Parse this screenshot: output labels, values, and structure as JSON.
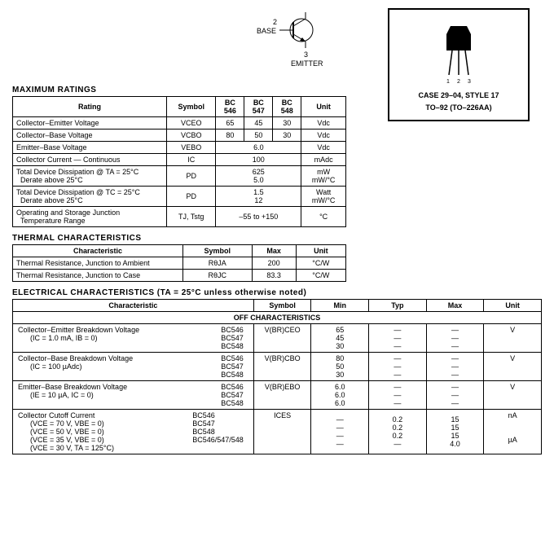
{
  "diagram": {
    "base": "BASE",
    "emitter": "EMITTER",
    "pin2": "2",
    "pin3": "3"
  },
  "package": {
    "pins": "1 2 3",
    "line1": "CASE 29–04, STYLE 17",
    "line2": "TO–92 (TO–226AA)"
  },
  "max_ratings": {
    "title": "MAXIMUM RATINGS",
    "headers": [
      "Rating",
      "Symbol",
      "BC 546",
      "BC 547",
      "BC 548",
      "Unit"
    ],
    "rows": [
      {
        "r": "Collector–Emitter Voltage",
        "s": "VCEO",
        "v": [
          "65",
          "45",
          "30"
        ],
        "u": "Vdc"
      },
      {
        "r": "Collector–Base Voltage",
        "s": "VCBO",
        "v": [
          "80",
          "50",
          "30"
        ],
        "u": "Vdc"
      },
      {
        "r": "Emitter–Base Voltage",
        "s": "VEBO",
        "v": [
          "6.0"
        ],
        "u": "Vdc",
        "span": 3
      },
      {
        "r": "Collector Current — Continuous",
        "s": "IC",
        "v": [
          "100"
        ],
        "u": "mAdc",
        "span": 3
      },
      {
        "r": "Total Device Dissipation @ TA = 25°C\n  Derate above 25°C",
        "s": "PD",
        "v": [
          "625\n5.0"
        ],
        "u": "mW\nmW/°C",
        "span": 3
      },
      {
        "r": "Total Device Dissipation @ TC = 25°C\n  Derate above 25°C",
        "s": "PD",
        "v": [
          "1.5\n12"
        ],
        "u": "Watt\nmW/°C",
        "span": 3
      },
      {
        "r": "Operating and Storage Junction\n  Temperature Range",
        "s": "TJ, Tstg",
        "v": [
          "–55 to +150"
        ],
        "u": "°C",
        "span": 3
      }
    ]
  },
  "thermal": {
    "title": "THERMAL CHARACTERISTICS",
    "headers": [
      "Characteristic",
      "Symbol",
      "Max",
      "Unit"
    ],
    "rows": [
      {
        "c": "Thermal Resistance, Junction to Ambient",
        "s": "RθJA",
        "m": "200",
        "u": "°C/W"
      },
      {
        "c": "Thermal Resistance, Junction to Case",
        "s": "RθJC",
        "m": "83.3",
        "u": "°C/W"
      }
    ]
  },
  "elec": {
    "title": "ELECTRICAL CHARACTERISTICS (TA = 25°C unless otherwise noted)",
    "headers": [
      "Characteristic",
      "Symbol",
      "Min",
      "Typ",
      "Max",
      "Unit"
    ],
    "off_title": "OFF CHARACTERISTICS",
    "groups": [
      {
        "name": "Collector–Emitter Breakdown Voltage",
        "cond": "(IC = 1.0 mA, IB = 0)",
        "parts": [
          "BC546",
          "BC547",
          "BC548"
        ],
        "sym": "V(BR)CEO",
        "min": [
          "65",
          "45",
          "30"
        ],
        "typ": [
          "—",
          "—",
          "—"
        ],
        "max": [
          "—",
          "—",
          "—"
        ],
        "u": "V"
      },
      {
        "name": "Collector–Base Breakdown Voltage",
        "cond": "(IC = 100 µAdc)",
        "parts": [
          "BC546",
          "BC547",
          "BC548"
        ],
        "sym": "V(BR)CBO",
        "min": [
          "80",
          "50",
          "30"
        ],
        "typ": [
          "—",
          "—",
          "—"
        ],
        "max": [
          "—",
          "—",
          "—"
        ],
        "u": "V"
      },
      {
        "name": "Emitter–Base Breakdown Voltage",
        "cond": "(IE = 10 µA, IC = 0)",
        "parts": [
          "BC546",
          "BC547",
          "BC548"
        ],
        "sym": "V(BR)EBO",
        "min": [
          "6.0",
          "6.0",
          "6.0"
        ],
        "typ": [
          "—",
          "—",
          "—"
        ],
        "max": [
          "—",
          "—",
          "—"
        ],
        "u": "V"
      },
      {
        "name": "Collector Cutoff Current",
        "cond": "",
        "conds": [
          "(VCE = 70 V, VBE = 0)",
          "(VCE = 50 V, VBE = 0)",
          "(VCE = 35 V, VBE = 0)",
          "(VCE = 30 V, TA = 125°C)"
        ],
        "parts": [
          "BC546",
          "BC547",
          "BC548",
          "BC546/547/548"
        ],
        "sym": "ICES",
        "min": [
          "—",
          "—",
          "—",
          "—"
        ],
        "typ": [
          "0.2",
          "0.2",
          "0.2",
          "—"
        ],
        "max": [
          "15",
          "15",
          "15",
          "4.0"
        ],
        "u": "nA",
        "u2": "µA"
      }
    ]
  }
}
